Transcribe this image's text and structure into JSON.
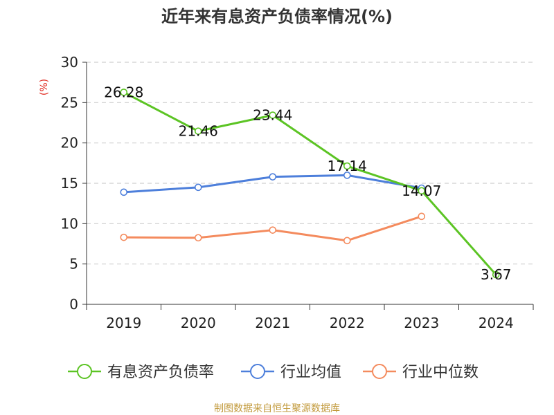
{
  "chart_data": {
    "type": "line",
    "title": "近年来有息资产负债率情况(%)",
    "xlabel": "",
    "ylabel": "(%)",
    "ylim": [
      0,
      30
    ],
    "yticks": [
      0,
      5,
      10,
      15,
      20,
      25,
      30
    ],
    "categories": [
      "2019",
      "2020",
      "2021",
      "2022",
      "2023",
      "2024"
    ],
    "grid": true,
    "legend_position": "bottom",
    "series": [
      {
        "name": "有息资产负债率",
        "color": "#5cc424",
        "values": [
          26.28,
          21.46,
          23.44,
          17.14,
          14.07,
          3.67
        ],
        "labels": [
          "26.28",
          "21.46",
          "23.44",
          "17.14",
          "14.07",
          "3.67"
        ]
      },
      {
        "name": "行业均值",
        "color": "#4d7fdb",
        "values": [
          13.9,
          14.5,
          15.8,
          16.0,
          14.4,
          null
        ]
      },
      {
        "name": "行业中位数",
        "color": "#f48b5e",
        "values": [
          8.3,
          8.25,
          9.2,
          7.9,
          10.9,
          null
        ]
      }
    ],
    "source": "制图数据来自恒生聚源数据库",
    "ylabel_color": "#e0251b",
    "source_color": "#c29a3c"
  }
}
